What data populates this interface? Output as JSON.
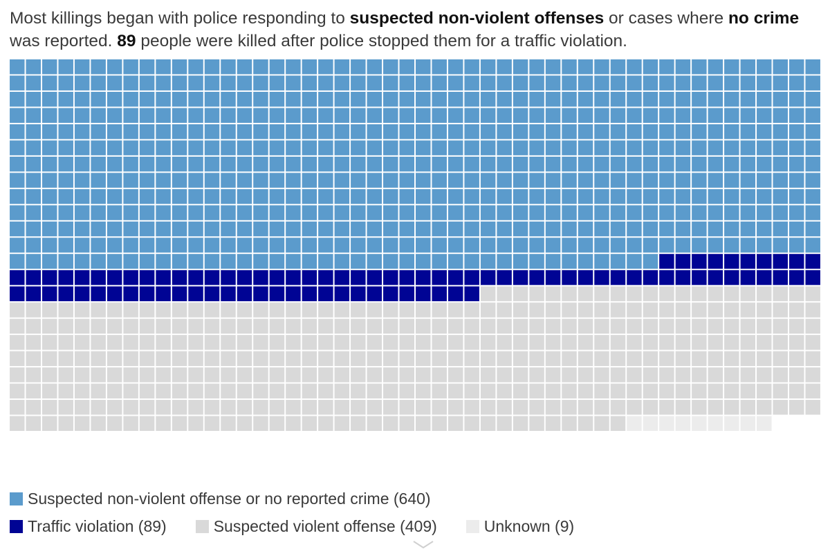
{
  "headline": {
    "part1": "Most killings began with police responding to ",
    "bold1": "suspected non-violent offenses",
    "part2": " or cases where ",
    "bold2": "no crime",
    "part3": " was reported. ",
    "bold3": "89",
    "part4": " people were killed after police stopped them for a traffic violation."
  },
  "chart_data": {
    "type": "waffle",
    "columns": 50,
    "series": [
      {
        "name": "Suspected non-violent offense or no reported crime",
        "value": 640,
        "color": "#5b9bcc"
      },
      {
        "name": "Traffic violation",
        "value": 89,
        "color": "#000494"
      },
      {
        "name": "Suspected violent offense",
        "value": 409,
        "color": "#d9d9d9"
      },
      {
        "name": "Unknown",
        "value": 9,
        "color": "#ececec"
      }
    ]
  },
  "legend": [
    {
      "label": "Suspected non-violent offense or no reported crime (640)",
      "color": "#5b9bcc"
    },
    {
      "label": "Traffic violation (89)",
      "color": "#000494"
    },
    {
      "label": "Suspected violent offense (409)",
      "color": "#d9d9d9"
    },
    {
      "label": "Unknown (9)",
      "color": "#ececec"
    }
  ]
}
